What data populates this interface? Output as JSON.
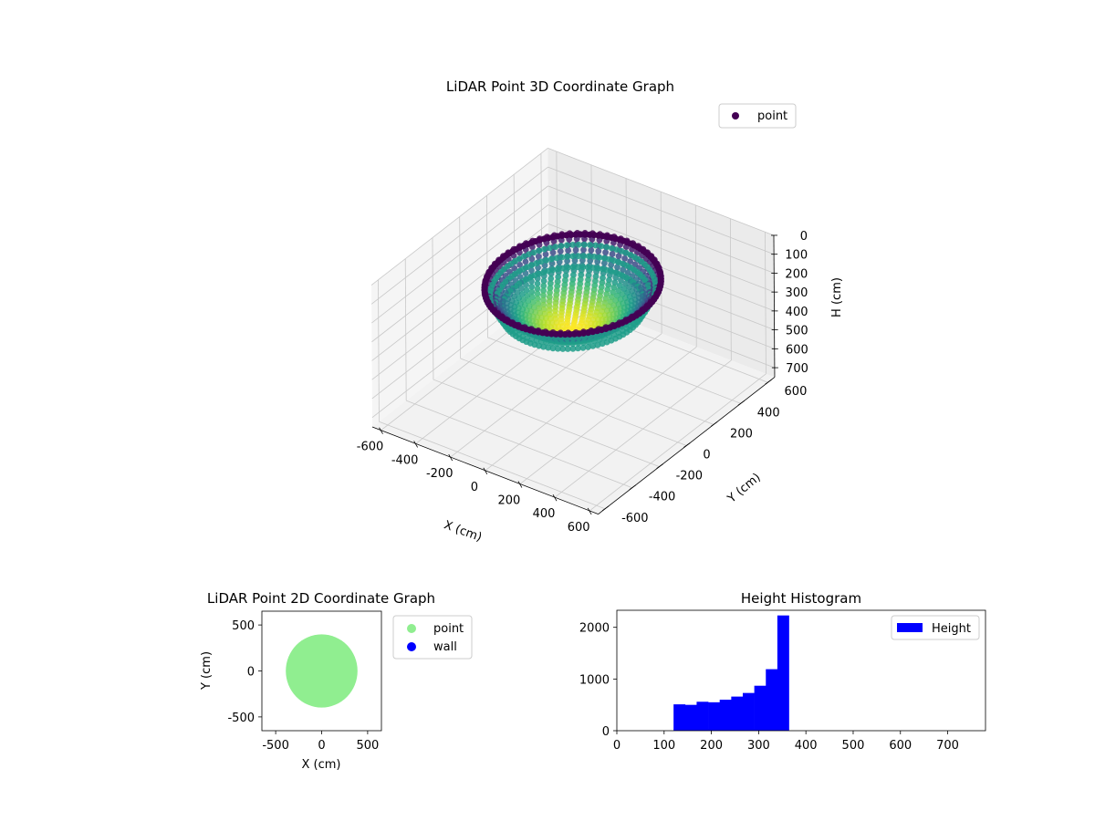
{
  "chart_data": [
    {
      "type": "scatter3d",
      "title": "LiDAR Point 3D Coordinate Graph",
      "xlabel": "X (cm)",
      "ylabel": "Y (cm)",
      "zlabel": "H (cm)",
      "xlim": [
        -650,
        650
      ],
      "ylim": [
        -650,
        650
      ],
      "zlim": [
        0,
        750
      ],
      "z_inverted": true,
      "xticks": [
        -600,
        -400,
        -200,
        0,
        200,
        400,
        600
      ],
      "yticks": [
        -600,
        -400,
        -200,
        0,
        200,
        400,
        600
      ],
      "zticks": [
        0,
        100,
        200,
        300,
        400,
        500,
        600,
        700
      ],
      "grid": true,
      "legend": {
        "position": "upper-right",
        "entries": [
          "point"
        ]
      },
      "colormap": "viridis",
      "series": [
        {
          "name": "point",
          "shape": "bowl",
          "center": [
            0,
            0
          ],
          "rim_radius": 400,
          "rim_height": 120,
          "bottom_height": 360
        }
      ]
    },
    {
      "type": "scatter",
      "title": "LiDAR Point 2D Coordinate Graph",
      "xlabel": "X (cm)",
      "ylabel": "Y (cm)",
      "xlim": [
        -650,
        650
      ],
      "ylim": [
        -650,
        650
      ],
      "xticks": [
        -500,
        0,
        500
      ],
      "yticks": [
        -500,
        0,
        500
      ],
      "legend": {
        "position": "outside-right",
        "entries": [
          "point",
          "wall"
        ]
      },
      "series": [
        {
          "name": "point",
          "color": "#90ee90",
          "shape": "disk",
          "center": [
            0,
            0
          ],
          "radius": 390
        },
        {
          "name": "wall",
          "color": "#0000ff",
          "points": []
        }
      ]
    },
    {
      "type": "bar",
      "title": "Height Histogram",
      "xlim": [
        0,
        780
      ],
      "ylim": [
        0,
        2330
      ],
      "xticks": [
        0,
        100,
        200,
        300,
        400,
        500,
        600,
        700
      ],
      "yticks": [
        0,
        1000,
        2000
      ],
      "legend": {
        "position": "upper-right",
        "entries": [
          "Height"
        ]
      },
      "color": "#0000ff",
      "bin_edges": [
        120,
        144.4,
        168.8,
        193.2,
        217.6,
        242,
        266.4,
        290.8,
        315.2,
        339.6,
        364
      ],
      "series": [
        {
          "name": "Height",
          "values": [
            510,
            500,
            560,
            550,
            600,
            660,
            730,
            870,
            1190,
            2230
          ]
        }
      ]
    }
  ]
}
